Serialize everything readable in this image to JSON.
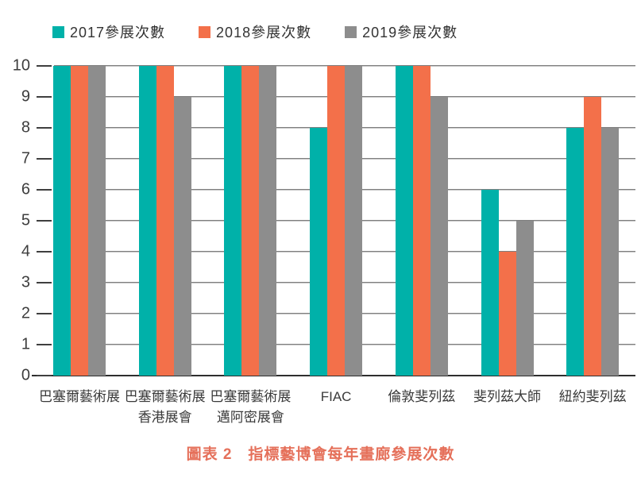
{
  "chart_data": {
    "type": "bar",
    "title": "圖表 2　指標藝博會每年畫廊參展次數",
    "categories": [
      "巴塞爾藝術展",
      "巴塞爾藝術展\n香港展會",
      "巴塞爾藝術展\n邁阿密展會",
      "FIAC",
      "倫敦斐列茲",
      "斐列茲大師",
      "紐約斐列茲"
    ],
    "series": [
      {
        "name": "2017參展次數",
        "color": "#00b1a9",
        "values": [
          10,
          10,
          10,
          8,
          10,
          6,
          8
        ]
      },
      {
        "name": "2018參展次數",
        "color": "#f3704a",
        "values": [
          10,
          10,
          10,
          10,
          10,
          4,
          9
        ]
      },
      {
        "name": "2019參展次數",
        "color": "#8d8d8d",
        "values": [
          10,
          9,
          10,
          10,
          9,
          5,
          8
        ]
      }
    ],
    "ylim": [
      0,
      10
    ],
    "yticks": [
      0,
      1,
      2,
      3,
      4,
      5,
      6,
      7,
      8,
      9,
      10
    ],
    "xlabel": "",
    "ylabel": "",
    "grid": true,
    "legend_position": "top",
    "colors": {
      "gridline": "#474747",
      "axis": "#2e2e2e",
      "tick_text": "#3d3d3d",
      "category_text": "#3a3a3a",
      "title_text": "#e5705a"
    }
  }
}
